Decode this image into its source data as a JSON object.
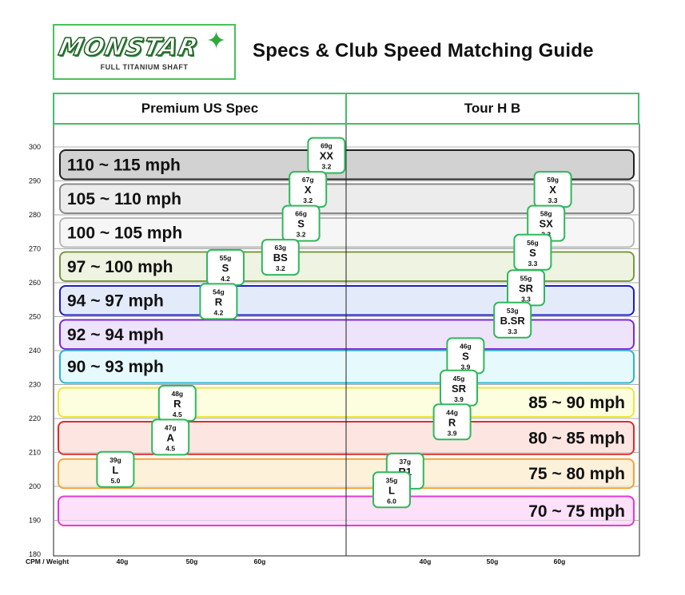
{
  "header": {
    "logo_text": "MONSTAR",
    "logo_subtitle": "FULL TITANIUM SHAFT",
    "title": "Specs & Club Speed Matching Guide"
  },
  "colors": {
    "accent_green": "#3fbf6a",
    "grid_line": "#888888"
  },
  "chart_data": {
    "type": "table",
    "title": "Specs & Club Speed Matching Guide",
    "y_axis": {
      "label": "CPM",
      "ticks": [
        300,
        290,
        280,
        270,
        260,
        250,
        240,
        230,
        220,
        210,
        200,
        190,
        180
      ],
      "range": [
        180,
        304
      ]
    },
    "x_axis": {
      "label": "Weight",
      "tick_labels": [
        "40g",
        "50g",
        "60g"
      ]
    },
    "axis_caption": "CPM /  Weight",
    "panels": [
      {
        "name": "Premium US Spec",
        "speed_bands": [
          {
            "label": "110 ~ 115 mph",
            "cpm_low": 290,
            "cpm_high": 300,
            "fill": "#d2d2d2",
            "stroke": "#222222"
          },
          {
            "label": "105 ~ 110 mph",
            "cpm_low": 280,
            "cpm_high": 290,
            "fill": "#ececec",
            "stroke": "#8a8a8a"
          },
          {
            "label": "100 ~ 105 mph",
            "cpm_low": 270,
            "cpm_high": 280,
            "fill": "#f6f6f6",
            "stroke": "#b8b8b8"
          },
          {
            "label": "97 ~ 100 mph",
            "cpm_low": 260,
            "cpm_high": 270,
            "fill": "#eef3e2",
            "stroke": "#7a9a40"
          },
          {
            "label": "94 ~ 97 mph",
            "cpm_low": 250,
            "cpm_high": 260,
            "fill": "#e3ebfb",
            "stroke": "#1c1cc8"
          },
          {
            "label": "92 ~ 94 mph",
            "cpm_low": 240,
            "cpm_high": 250,
            "fill": "#ede3fb",
            "stroke": "#7a2ad6"
          },
          {
            "label": "90 ~ 93 mph",
            "cpm_low": 230,
            "cpm_high": 241,
            "fill": "#e6f9fc",
            "stroke": "#2ab4d6"
          }
        ],
        "shafts": [
          {
            "weight": "69g",
            "flex": "XX",
            "torque": "3.2",
            "cpm": 297.5,
            "weight_g": 69
          },
          {
            "weight": "67g",
            "flex": "X",
            "torque": "3.2",
            "cpm": 287.5,
            "weight_g": 67
          },
          {
            "weight": "66g",
            "flex": "S",
            "torque": "3.2",
            "cpm": 277.5,
            "weight_g": 66
          },
          {
            "weight": "63g",
            "flex": "BS",
            "torque": "3.2",
            "cpm": 267.5,
            "weight_g": 63
          },
          {
            "weight": "55g",
            "flex": "S",
            "torque": "4.2",
            "cpm": 264.5,
            "weight_g": 55
          },
          {
            "weight": "54g",
            "flex": "R",
            "torque": "4.2",
            "cpm": 254.5,
            "weight_g": 54
          },
          {
            "weight": "48g",
            "flex": "R",
            "torque": "4.5",
            "cpm": 224.5,
            "weight_g": 48
          },
          {
            "weight": "47g",
            "flex": "A",
            "torque": "4.5",
            "cpm": 214.5,
            "weight_g": 47
          },
          {
            "weight": "39g",
            "flex": "L",
            "torque": "5.0",
            "cpm": 205,
            "weight_g": 39
          }
        ]
      },
      {
        "name": "Tour H B",
        "speed_bands": [
          {
            "label": "85 ~ 90 mph",
            "cpm_low": 220,
            "cpm_high": 230,
            "fill": "#fdfde0",
            "stroke": "#e8e83a"
          },
          {
            "label": "80 ~ 85 mph",
            "cpm_low": 209,
            "cpm_high": 220,
            "fill": "#fde6e2",
            "stroke": "#e02a2a"
          },
          {
            "label": "75 ~ 80 mph",
            "cpm_low": 199,
            "cpm_high": 209,
            "fill": "#fdf1da",
            "stroke": "#f2a43a"
          },
          {
            "label": "70 ~ 75 mph",
            "cpm_low": 188,
            "cpm_high": 198,
            "fill": "#fde0f9",
            "stroke": "#e23ad6"
          }
        ],
        "shafts": [
          {
            "weight": "59g",
            "flex": "X",
            "torque": "3.3",
            "cpm": 287.5,
            "weight_g": 59
          },
          {
            "weight": "58g",
            "flex": "SX",
            "torque": "3.3",
            "cpm": 277.5,
            "weight_g": 58
          },
          {
            "weight": "56g",
            "flex": "S",
            "torque": "3.3",
            "cpm": 269,
            "weight_g": 56
          },
          {
            "weight": "55g",
            "flex": "SR",
            "torque": "3.3",
            "cpm": 258.5,
            "weight_g": 55
          },
          {
            "weight": "53g",
            "flex": "B.SR",
            "torque": "3.3",
            "cpm": 249,
            "weight_g": 53
          },
          {
            "weight": "46g",
            "flex": "S",
            "torque": "3.9",
            "cpm": 238.5,
            "weight_g": 46
          },
          {
            "weight": "45g",
            "flex": "SR",
            "torque": "3.9",
            "cpm": 229,
            "weight_g": 45
          },
          {
            "weight": "44g",
            "flex": "R",
            "torque": "3.9",
            "cpm": 219,
            "weight_g": 44
          },
          {
            "weight": "37g",
            "flex": "R1",
            "torque": "5.5",
            "cpm": 204.5,
            "weight_g": 37
          },
          {
            "weight": "35g",
            "flex": "L",
            "torque": "6.0",
            "cpm": 199,
            "weight_g": 35
          }
        ]
      }
    ],
    "grid": true
  }
}
